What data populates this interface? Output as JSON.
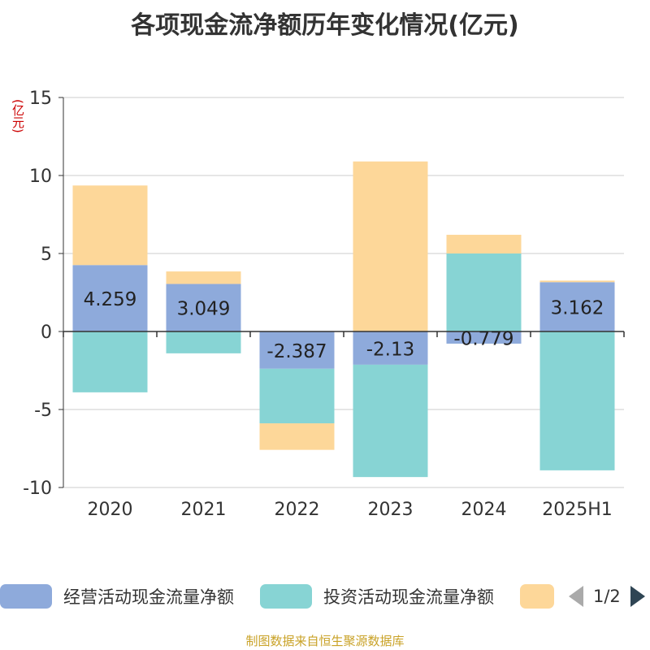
{
  "title": "各项现金流净额历年变化情况(亿元)",
  "unit": "(亿元)",
  "source": "制图数据来自恒生聚源数据库",
  "colors": {
    "operating": "#8eaadb",
    "investing": "#87d4d4",
    "financing": "#fdd799",
    "axis": "#333333",
    "grid": "#cccccc"
  },
  "legend": {
    "items": [
      {
        "label": "经营活动现金流量净额",
        "color": "#8eaadb"
      },
      {
        "label": "投资活动现金流量净额",
        "color": "#87d4d4"
      },
      {
        "label": "",
        "color": "#fdd799"
      }
    ],
    "page": "1/2"
  },
  "chart_data": {
    "type": "bar",
    "stacked": true,
    "categories": [
      "2020",
      "2021",
      "2022",
      "2023",
      "2024",
      "2025H1"
    ],
    "ylim": [
      -10,
      15
    ],
    "yticks": [
      -10,
      -5,
      0,
      5,
      10,
      15
    ],
    "grid": true,
    "legend_position": "bottom",
    "series": [
      {
        "name": "经营活动现金流量净额",
        "values": [
          4.259,
          3.049,
          -2.387,
          -2.13,
          -0.779,
          3.162
        ],
        "labels": [
          "4.259",
          "3.049",
          "-2.387",
          "-2.13",
          "-0.779",
          "3.162"
        ]
      },
      {
        "name": "投资活动现金流量净额",
        "values": [
          -3.9,
          -1.4,
          -3.5,
          -7.2,
          5.0,
          -8.9
        ]
      },
      {
        "values": [
          5.1,
          0.8,
          -1.7,
          10.9,
          1.2,
          0.1
        ]
      }
    ]
  }
}
